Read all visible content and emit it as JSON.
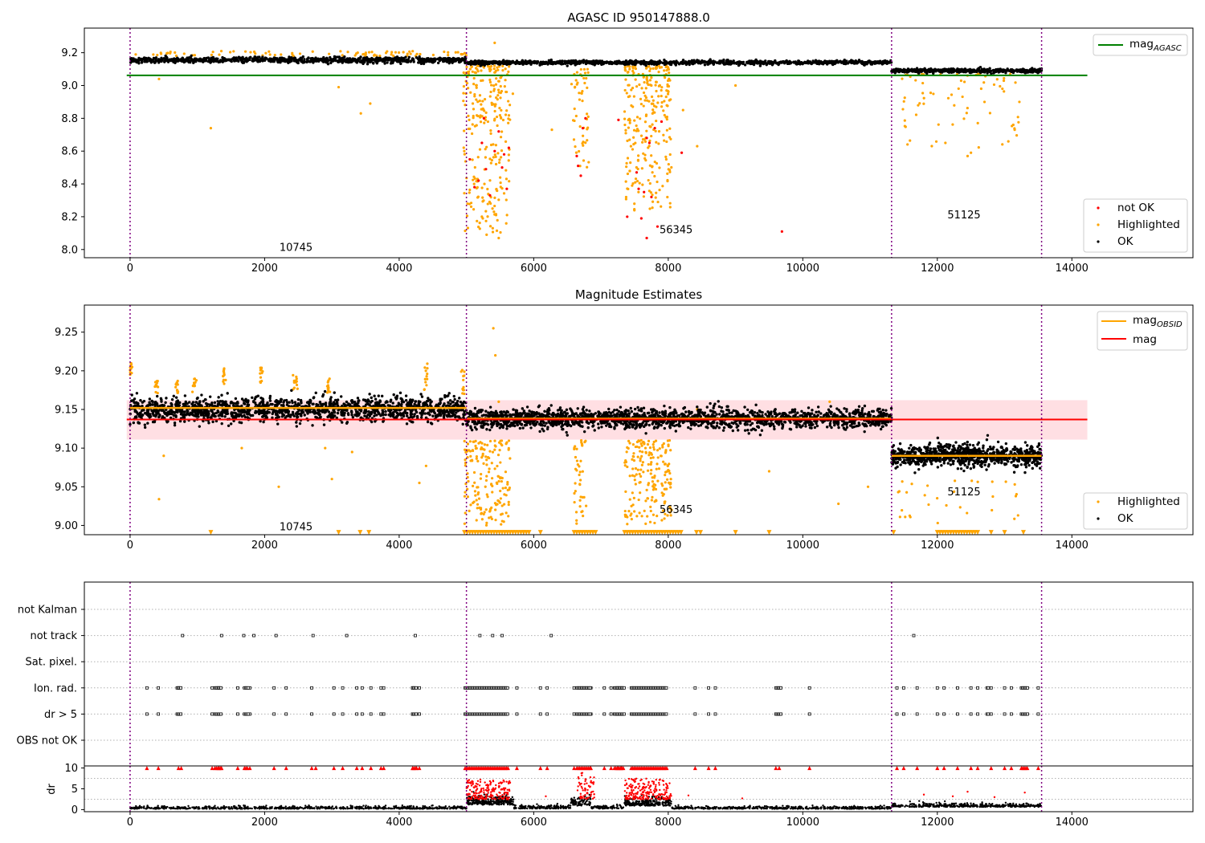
{
  "chart_data": [
    {
      "type": "scatter",
      "title": "AGASC ID 950147888.0",
      "xlim": [
        -680,
        15800
      ],
      "ylim": [
        7.95,
        9.35
      ],
      "xticks": [
        0,
        2000,
        4000,
        6000,
        8000,
        10000,
        12000,
        14000
      ],
      "yticks": [
        8.0,
        8.2,
        8.4,
        8.6,
        8.8,
        9.0,
        9.2
      ],
      "obsid_boundaries": [
        0,
        5000,
        11320,
        13550
      ],
      "obsid_labels": [
        {
          "text": "10745",
          "x": 2220,
          "y": 8.01
        },
        {
          "text": "56345",
          "x": 7870,
          "y": 8.12
        },
        {
          "text": "51125",
          "x": 12150,
          "y": 8.21
        }
      ],
      "ok_segments": [
        {
          "x0": 0,
          "x1": 5000,
          "mean": 9.155,
          "spread": 0.014,
          "n": 900
        },
        {
          "x0": 5000,
          "x1": 11320,
          "mean": 9.14,
          "spread": 0.01,
          "n": 1100
        },
        {
          "x0": 11320,
          "x1": 13550,
          "mean": 9.09,
          "spread": 0.01,
          "n": 450
        }
      ],
      "highlight_clusters": [
        {
          "x0": 4950,
          "x1": 5650,
          "y0": 8.1,
          "y1": 9.12,
          "n": 260
        },
        {
          "x0": 6560,
          "x1": 6820,
          "y0": 8.5,
          "y1": 9.1,
          "n": 50
        },
        {
          "x0": 7350,
          "x1": 8050,
          "y0": 8.2,
          "y1": 9.12,
          "n": 260
        },
        {
          "x0": 11450,
          "x1": 13300,
          "y0": 8.6,
          "y1": 9.07,
          "n": 70
        }
      ],
      "highlight_points": [
        [
          1200,
          8.74
        ],
        [
          430,
          9.04
        ],
        [
          3100,
          8.99
        ],
        [
          3430,
          8.83
        ],
        [
          3570,
          8.89
        ],
        [
          5420,
          9.26
        ],
        [
          5300,
          8.09
        ],
        [
          5480,
          8.07
        ],
        [
          5440,
          8.21
        ],
        [
          5690,
          8.95
        ],
        [
          6270,
          8.73
        ],
        [
          8430,
          8.63
        ],
        [
          8220,
          8.85
        ],
        [
          9000,
          9.0
        ],
        [
          12120,
          8.65
        ],
        [
          12450,
          8.57
        ],
        [
          12500,
          8.59
        ],
        [
          13150,
          8.73
        ],
        [
          13220,
          8.9
        ]
      ],
      "notok_points": [
        [
          5050,
          8.55
        ],
        [
          5120,
          8.38
        ],
        [
          5180,
          8.42
        ],
        [
          5230,
          8.65
        ],
        [
          5290,
          8.49
        ],
        [
          5350,
          8.33
        ],
        [
          5420,
          8.6
        ],
        [
          5480,
          8.72
        ],
        [
          5530,
          8.5
        ],
        [
          5600,
          8.37
        ],
        [
          5630,
          8.62
        ],
        [
          5560,
          8.58
        ],
        [
          5260,
          8.8
        ],
        [
          6640,
          8.57
        ],
        [
          6660,
          8.51
        ],
        [
          6700,
          8.45
        ],
        [
          6730,
          8.74
        ],
        [
          6770,
          8.8
        ],
        [
          7260,
          8.79
        ],
        [
          7390,
          8.2
        ],
        [
          7530,
          8.47
        ],
        [
          7560,
          8.37
        ],
        [
          7600,
          8.19
        ],
        [
          7640,
          8.35
        ],
        [
          7680,
          8.68
        ],
        [
          7720,
          8.65
        ],
        [
          7750,
          8.32
        ],
        [
          7800,
          8.74
        ],
        [
          7840,
          8.14
        ],
        [
          7680,
          8.07
        ],
        [
          7900,
          8.78
        ],
        [
          8200,
          8.59
        ],
        [
          9690,
          8.11
        ]
      ],
      "hlines": [
        {
          "name": "mag$_{AGASC}$",
          "y": 9.062,
          "x0": -50,
          "x1": 14230,
          "color": "#008000"
        }
      ],
      "legends": [
        {
          "position": "top-right",
          "entries": [
            {
              "name": "mag",
              "sub": "AGASC",
              "kind": "line",
              "color": "#008000"
            }
          ]
        },
        {
          "position": "bottom-right",
          "entries": [
            {
              "name": "not OK",
              "kind": "dot",
              "color": "#ff0000"
            },
            {
              "name": "Highlighted",
              "kind": "dot",
              "color": "#ffa500"
            },
            {
              "name": "OK",
              "kind": "dot",
              "color": "#000000"
            }
          ]
        }
      ]
    },
    {
      "type": "scatter",
      "title": "Magnitude Estimates",
      "xlim": [
        -680,
        15800
      ],
      "ylim": [
        8.988,
        9.285
      ],
      "xticks": [
        0,
        2000,
        4000,
        6000,
        8000,
        10000,
        12000,
        14000
      ],
      "yticks": [
        9.0,
        9.05,
        9.1,
        9.15,
        9.2,
        9.25
      ],
      "obsid_boundaries": [
        0,
        5000,
        11320,
        13550
      ],
      "obsid_labels": [
        {
          "text": "10745",
          "x": 2220,
          "y": 8.998
        },
        {
          "text": "56345",
          "x": 7870,
          "y": 9.02
        },
        {
          "text": "51125",
          "x": 12150,
          "y": 9.043
        }
      ],
      "ok_segments": [
        {
          "x0": 0,
          "x1": 5000,
          "mean": 9.15,
          "spread": 0.011,
          "n": 1500
        },
        {
          "x0": 5000,
          "x1": 11320,
          "mean": 9.138,
          "spread": 0.009,
          "n": 1900
        },
        {
          "x0": 11320,
          "x1": 13550,
          "mean": 9.09,
          "spread": 0.01,
          "n": 900
        }
      ],
      "highlight_clusters": [
        {
          "x0": 4970,
          "x1": 5650,
          "y0": 9.0,
          "y1": 9.11,
          "n": 170
        },
        {
          "x0": 6600,
          "x1": 6780,
          "y0": 9.0,
          "y1": 9.11,
          "n": 40
        },
        {
          "x0": 7350,
          "x1": 8050,
          "y0": 9.0,
          "y1": 9.11,
          "n": 190
        },
        {
          "x0": 11400,
          "x1": 13300,
          "y0": 9.0,
          "y1": 9.06,
          "n": 30
        }
      ],
      "highlight_spikes": [
        [
          10,
          9.195,
          9.212
        ],
        [
          400,
          9.17,
          9.19
        ],
        [
          700,
          9.17,
          9.188
        ],
        [
          950,
          9.172,
          9.19
        ],
        [
          1400,
          9.18,
          9.205
        ],
        [
          1950,
          9.18,
          9.205
        ],
        [
          2450,
          9.17,
          9.2
        ],
        [
          2950,
          9.17,
          9.19
        ],
        [
          4400,
          9.17,
          9.21
        ],
        [
          4950,
          9.17,
          9.205
        ]
      ],
      "highlight_points": [
        [
          500,
          9.09
        ],
        [
          430,
          9.034
        ],
        [
          2210,
          9.05
        ],
        [
          1660,
          9.1
        ],
        [
          2900,
          9.1
        ],
        [
          3000,
          9.06
        ],
        [
          3300,
          9.095
        ],
        [
          4300,
          9.055
        ],
        [
          4400,
          9.077
        ],
        [
          5400,
          9.255
        ],
        [
          5430,
          9.22
        ],
        [
          5480,
          9.16
        ],
        [
          10530,
          9.028
        ],
        [
          10970,
          9.05
        ],
        [
          8430,
          9.15
        ],
        [
          9500,
          9.07
        ],
        [
          10400,
          9.16
        ],
        [
          13200,
          9.013
        ]
      ],
      "lower_limit_markers": {
        "y": 8.991,
        "xs": [
          1200,
          3100,
          3420,
          3550,
          5850,
          6100,
          8420,
          8480,
          9000,
          9500,
          11350,
          12800,
          13000,
          13280
        ],
        "clusters": [
          [
            4970,
            5950
          ],
          [
            6600,
            6950
          ],
          [
            7350,
            8200
          ],
          [
            12000,
            12600
          ]
        ]
      },
      "band": {
        "y0": 9.111,
        "y1": 9.162,
        "x0": -50,
        "x1": 14230,
        "color": "#ffc0c8"
      },
      "hlines": [
        {
          "name": "mag",
          "y": 9.137,
          "x0": -50,
          "x1": 14230,
          "color": "#ff0000"
        }
      ],
      "obsid_mag_lines": [
        {
          "x0": 0,
          "x1": 5000,
          "y": 9.152
        },
        {
          "x0": 5000,
          "x1": 11320,
          "y": 9.138
        },
        {
          "x0": 11320,
          "x1": 13550,
          "y": 9.09
        }
      ],
      "legends": [
        {
          "position": "top-right",
          "entries": [
            {
              "name": "mag",
              "sub": "OBSID",
              "kind": "line",
              "color": "#ffa500"
            },
            {
              "name": "mag",
              "kind": "line",
              "color": "#ff0000"
            }
          ]
        },
        {
          "position": "bottom-right",
          "entries": [
            {
              "name": "Highlighted",
              "kind": "dot",
              "color": "#ffa500"
            },
            {
              "name": "OK",
              "kind": "dot",
              "color": "#000000"
            }
          ]
        }
      ]
    },
    {
      "type": "scatter",
      "xlim": [
        -680,
        15800
      ],
      "obsid_boundaries": [
        0,
        5000,
        11320,
        13550
      ],
      "flag_rows": [
        "not Kalman",
        "not track",
        "Sat. pixel.",
        "Ion. rad.",
        "dr > 5",
        "OBS not OK"
      ],
      "flag_points": {
        "not track": [
          780,
          1360,
          1690,
          1840,
          2170,
          2720,
          3220,
          4240,
          5200,
          5390,
          5530,
          6260,
          11650
        ],
        "Ion. rad.": [
          250,
          420,
          720,
          1220,
          1320,
          1600,
          1780,
          2140,
          2320,
          2700,
          3030,
          3160,
          3370,
          3450,
          3580,
          3730,
          3770,
          4200,
          4300,
          5750,
          6100,
          6200,
          6600,
          6850,
          7050,
          7150,
          7250,
          7300,
          8400,
          8600,
          8700,
          9600,
          10100,
          11400,
          11500,
          11700,
          12000,
          12100,
          12300,
          12500,
          12600,
          12800,
          13000,
          13100,
          13500
        ],
        "dr > 5": [
          250,
          420,
          720,
          1220,
          1320,
          1600,
          1780,
          2140,
          2320,
          2700,
          3030,
          3160,
          3370,
          3450,
          3580,
          3730,
          3770,
          4200,
          4300,
          5750,
          6100,
          6200,
          6600,
          6850,
          7050,
          7150,
          7250,
          7300,
          8400,
          8600,
          8700,
          9600,
          10100,
          11400,
          11500,
          11700,
          12000,
          12100,
          12300,
          12500,
          12600,
          12800,
          13000,
          13100,
          13500
        ]
      },
      "flag_clusters": {
        "Ion. rad.": [
          [
            4980,
            5620
          ],
          [
            6640,
            6850
          ],
          [
            7200,
            7350
          ],
          [
            7450,
            7980
          ],
          [
            700,
            760
          ],
          [
            1260,
            1350
          ],
          [
            1700,
            1760
          ],
          [
            9620,
            9680
          ],
          [
            12740,
            12760
          ],
          [
            13250,
            13350
          ],
          [
            4200,
            4260
          ]
        ],
        "dr > 5": [
          [
            4980,
            5620
          ],
          [
            6640,
            6850
          ],
          [
            7200,
            7350
          ],
          [
            7450,
            7980
          ],
          [
            700,
            760
          ],
          [
            1260,
            1350
          ],
          [
            1700,
            1760
          ],
          [
            9620,
            9680
          ],
          [
            12740,
            12760
          ],
          [
            13250,
            13350
          ],
          [
            4200,
            4260
          ]
        ]
      }
    },
    {
      "type": "scatter",
      "ylabel": "dr",
      "xlim": [
        -680,
        15800
      ],
      "ylim": [
        -0.5,
        10.5
      ],
      "xticks": [
        0,
        2000,
        4000,
        6000,
        8000,
        10000,
        12000,
        14000
      ],
      "yticks": [
        0,
        5,
        10
      ],
      "obsid_boundaries": [
        0,
        5000,
        11320,
        13550
      ],
      "ok_segments": [
        {
          "x0": 0,
          "x1": 5000,
          "mean": 0.3,
          "spread": 0.3,
          "n": 700
        },
        {
          "x0": 5000,
          "x1": 5700,
          "mean": 1.6,
          "spread": 1.1,
          "n": 300
        },
        {
          "x0": 5700,
          "x1": 6550,
          "mean": 0.4,
          "spread": 0.4,
          "n": 150
        },
        {
          "x0": 6550,
          "x1": 6850,
          "mean": 1.3,
          "spread": 0.9,
          "n": 80
        },
        {
          "x0": 6850,
          "x1": 7350,
          "mean": 0.4,
          "spread": 0.4,
          "n": 80
        },
        {
          "x0": 7350,
          "x1": 8050,
          "mean": 1.3,
          "spread": 0.9,
          "n": 250
        },
        {
          "x0": 8050,
          "x1": 11320,
          "mean": 0.3,
          "spread": 0.3,
          "n": 500
        },
        {
          "x0": 11320,
          "x1": 13550,
          "mean": 0.8,
          "spread": 0.4,
          "n": 400
        }
      ],
      "red_clusters": [
        {
          "x0": 5000,
          "x1": 5650,
          "y0": 2.5,
          "y1": 7.5,
          "n": 180
        },
        {
          "x0": 6650,
          "x1": 6900,
          "y0": 2.5,
          "y1": 9.0,
          "n": 60
        },
        {
          "x0": 7350,
          "x1": 8050,
          "y0": 2.5,
          "y1": 7.5,
          "n": 200
        }
      ],
      "red_points": [
        [
          6180,
          3.2
        ],
        [
          8300,
          3.4
        ],
        [
          9100,
          2.7
        ],
        [
          12230,
          3.2
        ],
        [
          12450,
          4.3
        ],
        [
          13300,
          4.1
        ],
        [
          12850,
          3.0
        ],
        [
          11800,
          3.6
        ]
      ],
      "cap_value": 10,
      "cap_points": [
        250,
        420,
        720,
        760,
        1220,
        1320,
        1360,
        1600,
        1780,
        2140,
        2320,
        2700,
        2760,
        3030,
        3160,
        3370,
        3450,
        3580,
        3730,
        3770,
        4200,
        4260,
        4300,
        5750,
        6100,
        6200,
        6600,
        6850,
        7050,
        7150,
        7250,
        7300,
        8400,
        8600,
        8700,
        9600,
        9650,
        10100,
        11400,
        11500,
        11700,
        12000,
        12100,
        12300,
        12500,
        12600,
        12800,
        13000,
        13100,
        13500
      ],
      "cap_clusters": [
        [
          4980,
          5620
        ],
        [
          6640,
          6850
        ],
        [
          7200,
          7350
        ],
        [
          7450,
          7980
        ],
        [
          1260,
          1350
        ],
        [
          1700,
          1760
        ],
        [
          13250,
          13350
        ],
        [
          4200,
          4260
        ]
      ]
    }
  ]
}
